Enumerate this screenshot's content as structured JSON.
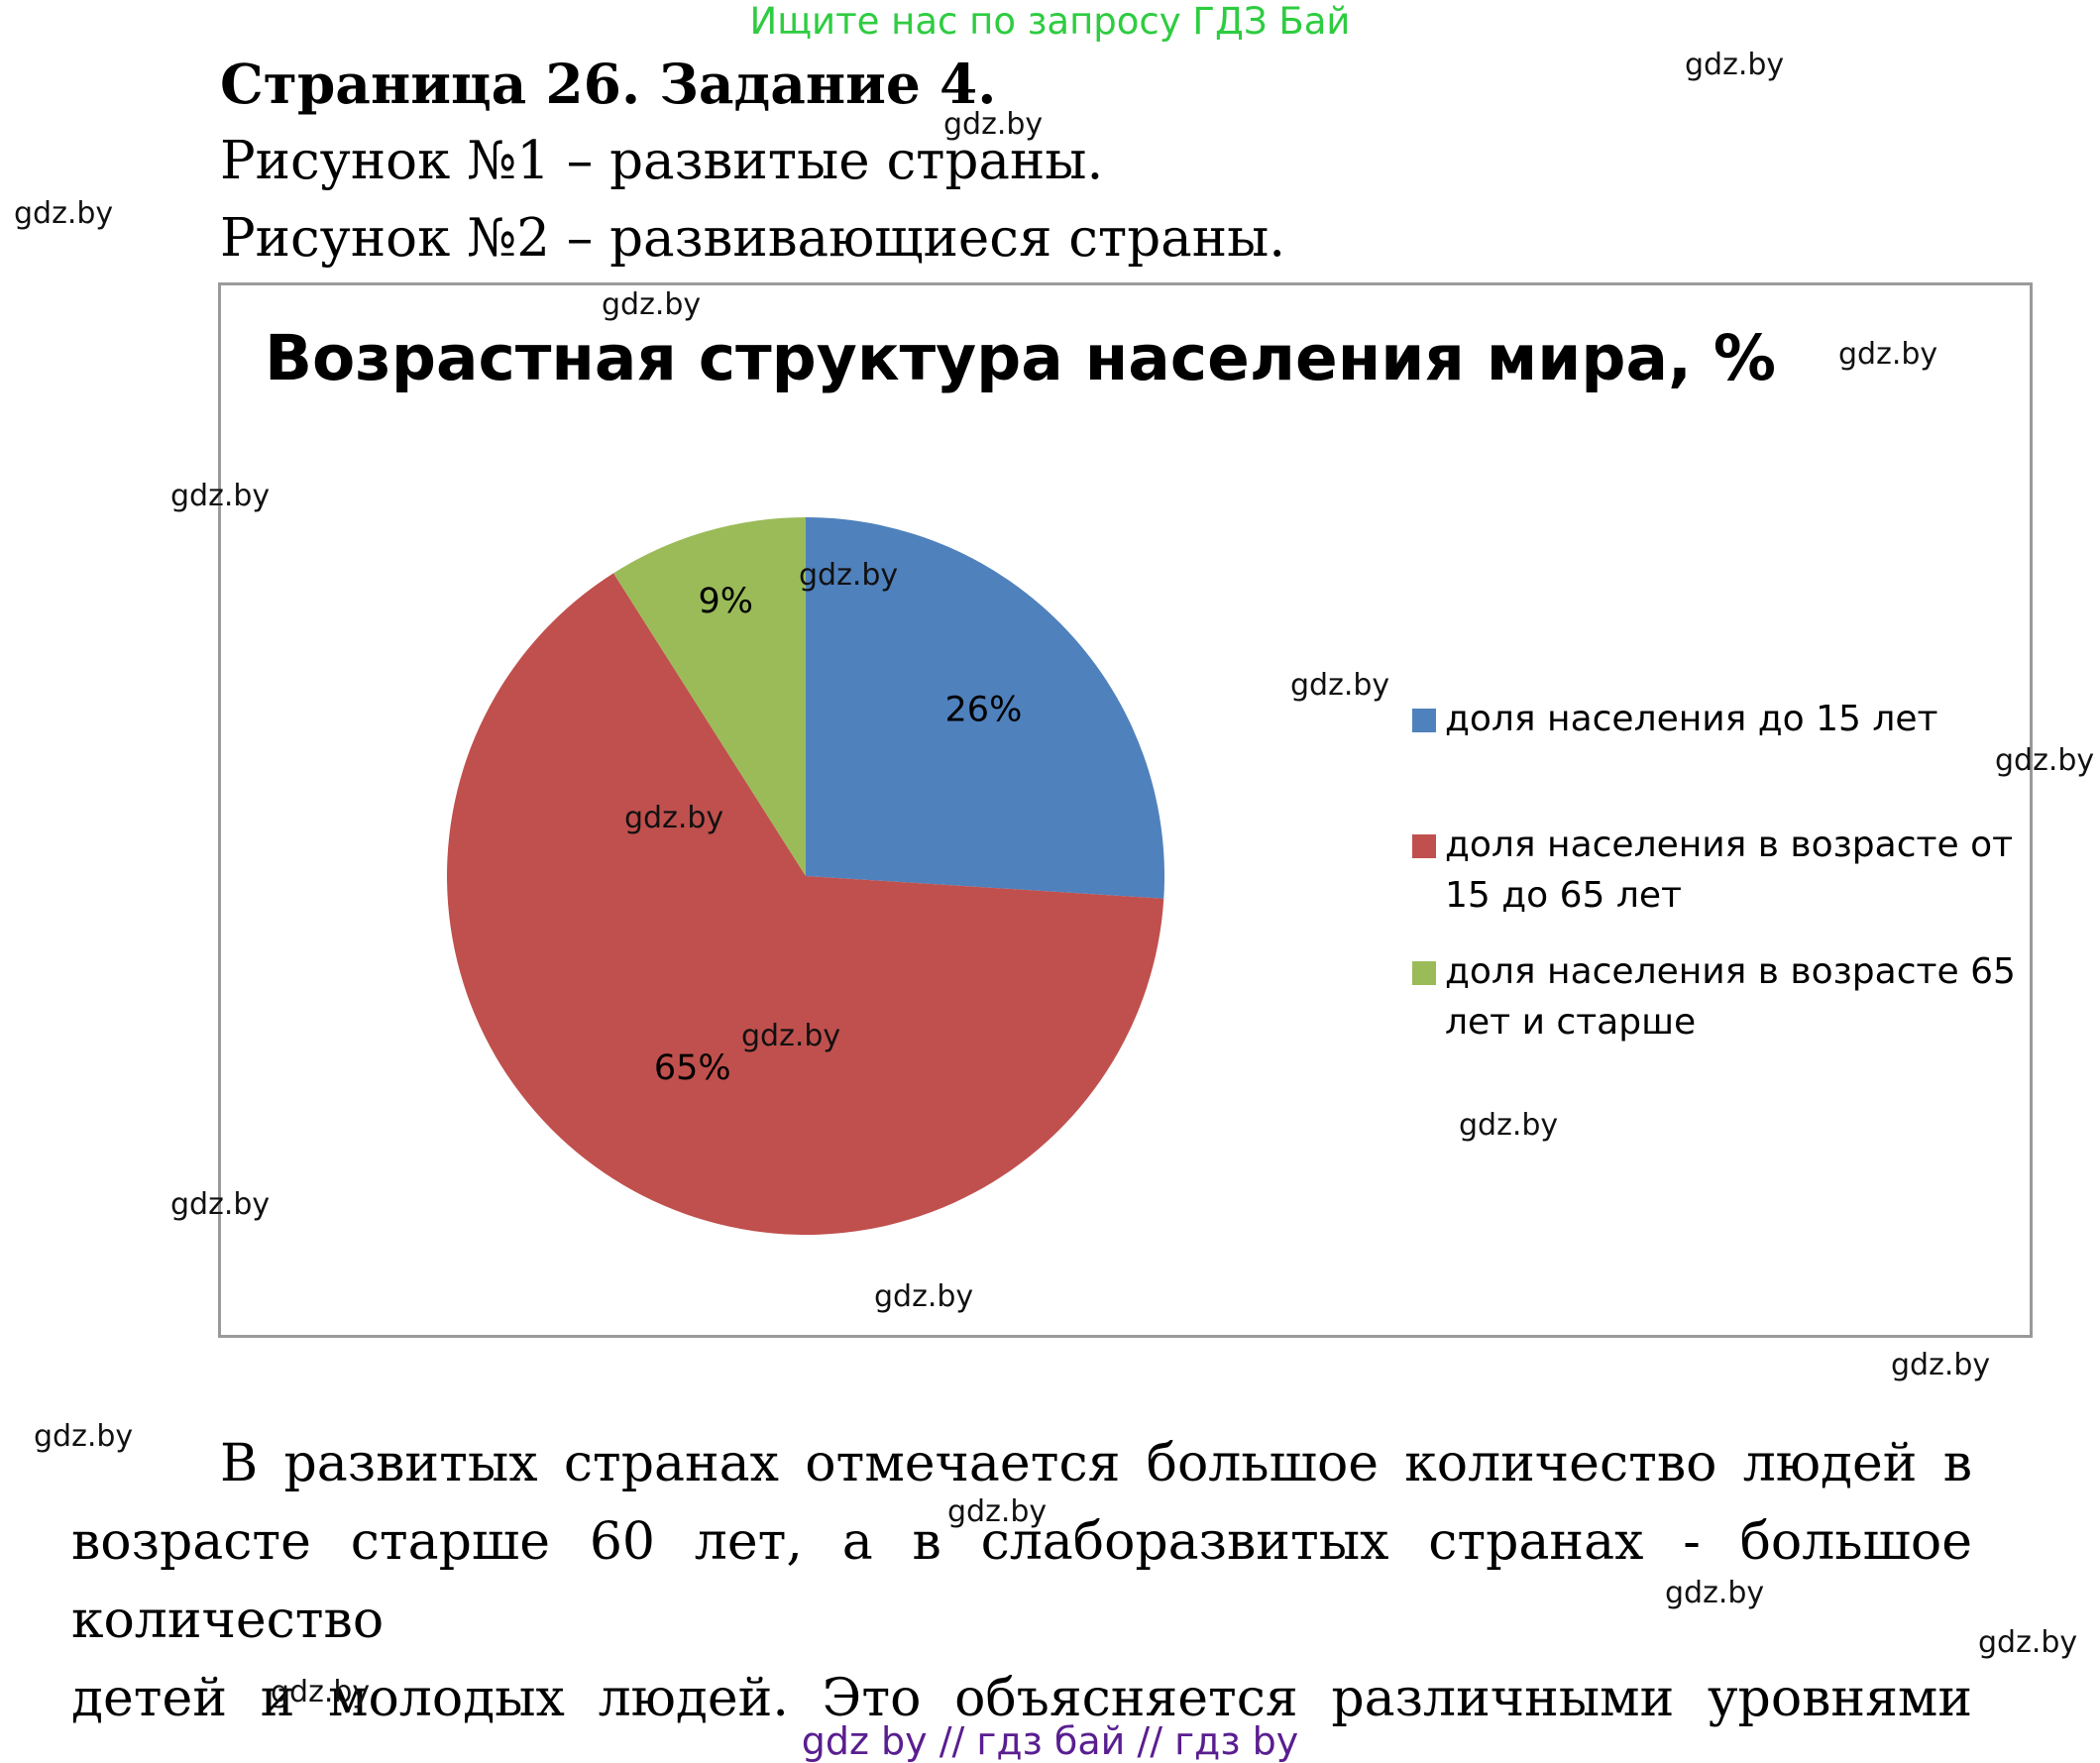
{
  "banner": "Ищите нас по запросу ГДЗ Бай",
  "heading": "Страница 26. Задание 4.",
  "lines": [
    "Рисунок №1 – развитые страны.",
    "Рисунок №2 – развивающиеся страны."
  ],
  "chart_data": {
    "type": "pie",
    "title": "Возрастная структура населения мира, %",
    "categories": [
      "доля населения до 15 лет",
      "доля населения в возрасте от 15 до 65 лет",
      "доля населения в возрасте 65 лет и старше"
    ],
    "values": [
      26,
      65,
      9
    ],
    "data_labels": [
      "26%",
      "65%",
      "9%"
    ],
    "colors": [
      "#4f81bd",
      "#c0504d",
      "#9bbb59"
    ],
    "legend_position": "right"
  },
  "paragraph": {
    "line1": "В развитых странах отмечается большое количество людей в",
    "line2": "возрасте старше 60 лет, а в слаборазвитых странах - большое количество",
    "line3": "детей и молодых людей. Это объясняется различными уровнями"
  },
  "watermark": "gdz.by",
  "footer": "gdz by  //  гдз бай  //  гдз by"
}
